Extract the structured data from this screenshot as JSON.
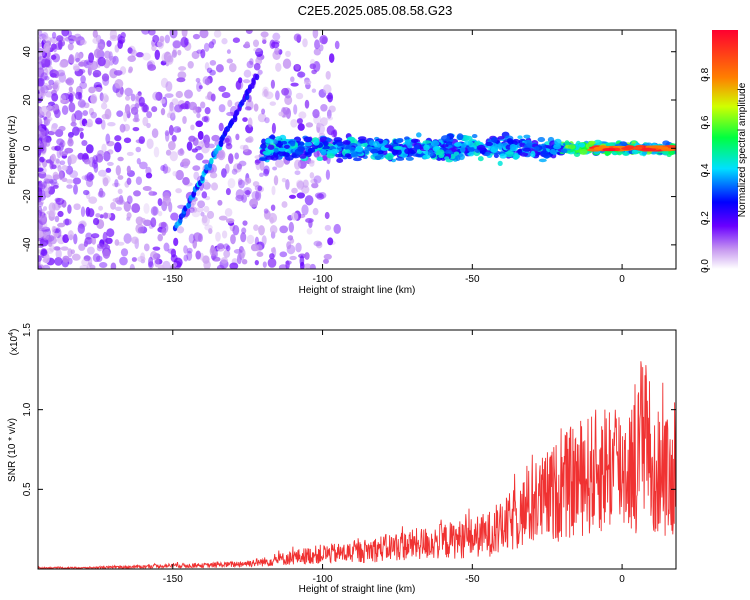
{
  "title": "C2E5.2025.085.08.58.G23",
  "chart_data": [
    {
      "type": "heatmap",
      "xlabel": "Height of straight line (km)",
      "ylabel": "Frequency (Hz)",
      "xlim": [
        -195,
        18
      ],
      "ylim": [
        -50,
        49
      ],
      "xticks": [
        -150,
        -100,
        -50,
        0
      ],
      "yticks": [
        -40,
        -20,
        0,
        20,
        40
      ],
      "grid": false,
      "colorbar": {
        "label": "Normalized spectral amplitude",
        "range": [
          0,
          1
        ],
        "ticks": [
          0.0,
          0.2,
          0.4,
          0.6,
          0.8
        ]
      },
      "features": {
        "diagonal_track": {
          "x": [
            -149,
            -122
          ],
          "y": [
            -33,
            30
          ]
        },
        "horizontal_track": {
          "x": [
            -120,
            18
          ],
          "y": [
            0,
            0
          ]
        }
      }
    },
    {
      "type": "line",
      "xlabel": "Height of straight line (km)",
      "ylabel": "SNR (10 * v/v)",
      "ylabel_multiplier": "(x10",
      "ylabel_multiplier_exp": "4",
      "xlim": [
        -195,
        18
      ],
      "ylim": [
        0,
        1.5
      ],
      "xticks": [
        -150,
        -100,
        -50,
        0
      ],
      "yticks": [
        0.5,
        1.0,
        1.5
      ],
      "series": [
        {
          "color": "#f03232",
          "x": [
            -195,
            -180,
            -160,
            -150,
            -140,
            -130,
            -120,
            -110,
            -100,
            -90,
            -80,
            -70,
            -60,
            -50,
            -45,
            -40,
            -35,
            -30,
            -25,
            -20,
            -15,
            -10,
            -5,
            0,
            5,
            8,
            10,
            12,
            15,
            18
          ],
          "y": [
            0.01,
            0.01,
            0.02,
            0.03,
            0.03,
            0.04,
            0.06,
            0.1,
            0.13,
            0.14,
            0.18,
            0.21,
            0.24,
            0.27,
            0.3,
            0.35,
            0.45,
            0.55,
            0.62,
            0.7,
            0.78,
            0.82,
            0.9,
            0.88,
            0.9,
            1.45,
            0.7,
            0.85,
            0.8,
            0.75
          ]
        }
      ]
    }
  ]
}
